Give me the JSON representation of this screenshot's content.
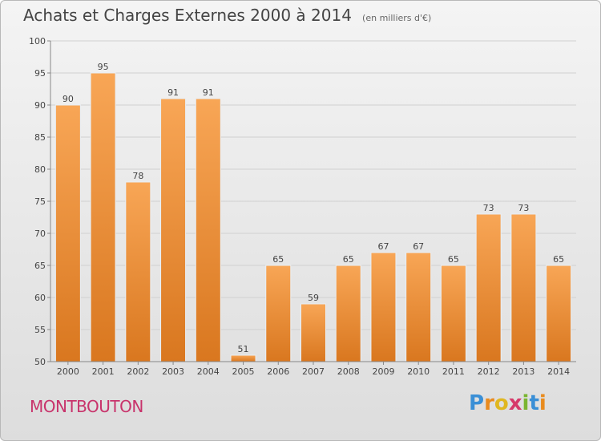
{
  "header": {
    "title": "Achats et Charges Externes 2000 à 2014",
    "subtitle": "(en milliers d'€)"
  },
  "footer": {
    "commune": "MONTBOUTON",
    "logo_letters": [
      "P",
      "r",
      "o",
      "x",
      "i",
      "t",
      "i"
    ],
    "logo_colors": [
      "#3a8fd6",
      "#e98b1e",
      "#e0b720",
      "#d63a6a",
      "#7ab531",
      "#3a8fd6",
      "#e98b1e"
    ]
  },
  "colors": {
    "bar_top": "#f8a656",
    "bar_bottom": "#d9771f",
    "axis": "#888888",
    "grid": "#d0d0d0",
    "label": "#444444"
  },
  "chart_data": {
    "type": "bar",
    "title": "Achats et Charges Externes 2000 à 2014",
    "subtitle": "(en milliers d'€)",
    "xlabel": "",
    "ylabel": "",
    "categories": [
      "2000",
      "2001",
      "2002",
      "2003",
      "2004",
      "2005",
      "2006",
      "2007",
      "2008",
      "2009",
      "2010",
      "2011",
      "2012",
      "2013",
      "2014"
    ],
    "values": [
      90,
      95,
      78,
      91,
      91,
      51,
      65,
      59,
      65,
      67,
      67,
      65,
      73,
      73,
      65
    ],
    "ylim": [
      50,
      100
    ],
    "yticks": [
      50,
      55,
      60,
      65,
      70,
      75,
      80,
      85,
      90,
      95,
      100
    ],
    "grid": true,
    "data_labels": true
  }
}
